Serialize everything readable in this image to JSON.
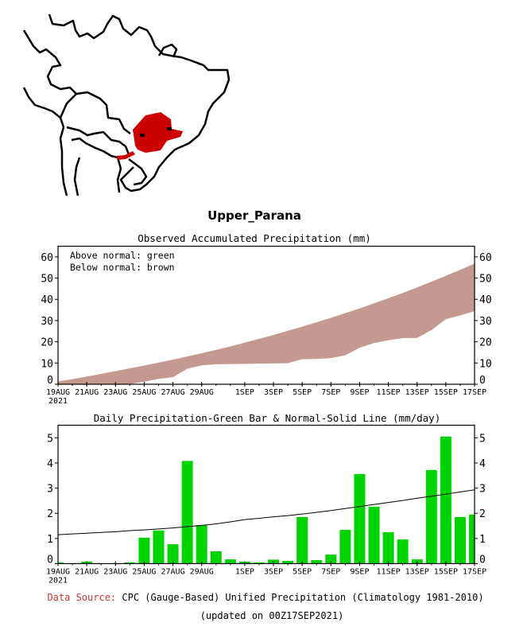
{
  "region": {
    "name": "Upper_Parana",
    "map_highlight_color": "#cc0000"
  },
  "colors": {
    "below_normal": "#c49a90",
    "above_normal": "#00cc00",
    "bar": "#00d400",
    "normal_line": "#000000",
    "data_source_label": "#cc3333"
  },
  "footer": {
    "data_source_label": "Data Source:",
    "data_source_text": "CPC (Gauge-Based) Unified Precipitation (Climatology 1981-2010)",
    "updated": "(updated on 00Z17SEP2021)"
  },
  "chart_data": [
    {
      "type": "area",
      "title": "Observed Accumulated Precipitation (mm)",
      "annotations": [
        "Above normal: green",
        "Below normal: brown"
      ],
      "xlabel": "",
      "ylabel": "",
      "ylim": [
        0,
        65
      ],
      "yticks": [
        0,
        10,
        20,
        30,
        40,
        50,
        60
      ],
      "xtick_labels": [
        "19AUG",
        "21AUG",
        "23AUG",
        "25AUG",
        "27AUG",
        "29AUG",
        "1SEP",
        "3SEP",
        "5SEP",
        "7SEP",
        "9SEP",
        "11SEP",
        "13SEP",
        "15SEP",
        "17SEP"
      ],
      "xtick_day_index": [
        0,
        2,
        4,
        6,
        8,
        10,
        13,
        15,
        17,
        19,
        21,
        23,
        25,
        27,
        29
      ],
      "year_label": "2021",
      "grid": false,
      "x": [
        "19AUG",
        "20AUG",
        "21AUG",
        "22AUG",
        "23AUG",
        "24AUG",
        "25AUG",
        "26AUG",
        "27AUG",
        "28AUG",
        "29AUG",
        "30AUG",
        "31AUG",
        "1SEP",
        "2SEP",
        "3SEP",
        "4SEP",
        "5SEP",
        "6SEP",
        "7SEP",
        "8SEP",
        "9SEP",
        "10SEP",
        "11SEP",
        "12SEP",
        "13SEP",
        "14SEP",
        "15SEP",
        "16SEP",
        "17SEP"
      ],
      "series": [
        {
          "name": "Observed accumulated",
          "values": [
            0.1,
            0.1,
            0.2,
            0.2,
            0.2,
            0.2,
            1.3,
            2.6,
            3.4,
            7.4,
            9.0,
            9.5,
            9.6,
            9.7,
            9.8,
            9.9,
            10.0,
            11.9,
            12.0,
            12.4,
            13.7,
            17.3,
            19.5,
            20.8,
            21.8,
            21.9,
            25.6,
            30.7,
            32.5,
            34.5
          ]
        },
        {
          "name": "Normal accumulated",
          "values": [
            1.2,
            2.3,
            3.5,
            4.8,
            6.1,
            7.4,
            8.7,
            10.1,
            11.5,
            13.0,
            14.5,
            16.1,
            17.7,
            19.5,
            21.3,
            23.1,
            25.1,
            27.0,
            29.1,
            31.2,
            33.4,
            35.6,
            38.0,
            40.4,
            42.9,
            45.5,
            48.2,
            51.0,
            53.8,
            56.7
          ]
        }
      ]
    },
    {
      "type": "bar",
      "title": "Daily Precipitation-Green Bar & Normal-Solid Line (mm/day)",
      "xlabel": "",
      "ylabel": "",
      "ylim": [
        0,
        5.5
      ],
      "yticks": [
        0,
        1,
        2,
        3,
        4,
        5
      ],
      "xtick_labels": [
        "19AUG",
        "21AUG",
        "23AUG",
        "25AUG",
        "27AUG",
        "29AUG",
        "1SEP",
        "3SEP",
        "5SEP",
        "7SEP",
        "9SEP",
        "11SEP",
        "13SEP",
        "15SEP",
        "17SEP"
      ],
      "xtick_day_index": [
        0,
        2,
        4,
        6,
        8,
        10,
        13,
        15,
        17,
        19,
        21,
        23,
        25,
        27,
        29
      ],
      "year_label": "2021",
      "grid": false,
      "categories": [
        "19AUG",
        "20AUG",
        "21AUG",
        "22AUG",
        "23AUG",
        "24AUG",
        "25AUG",
        "26AUG",
        "27AUG",
        "28AUG",
        "29AUG",
        "30AUG",
        "31AUG",
        "1SEP",
        "2SEP",
        "3SEP",
        "4SEP",
        "5SEP",
        "6SEP",
        "7SEP",
        "8SEP",
        "9SEP",
        "10SEP",
        "11SEP",
        "12SEP",
        "13SEP",
        "14SEP",
        "15SEP",
        "16SEP",
        "17SEP"
      ],
      "series": [
        {
          "name": "Daily precipitation",
          "type": "bar",
          "values": [
            0.05,
            0.02,
            0.08,
            0.02,
            0.02,
            0.05,
            1.03,
            1.32,
            0.77,
            4.08,
            1.53,
            0.49,
            0.17,
            0.08,
            0.05,
            0.16,
            0.11,
            1.85,
            0.14,
            0.36,
            1.34,
            3.56,
            2.26,
            1.25,
            0.96,
            0.17,
            3.72,
            5.05,
            1.85,
            1.95
          ]
        },
        {
          "name": "Normal",
          "type": "line",
          "values": [
            1.15,
            1.18,
            1.21,
            1.24,
            1.27,
            1.31,
            1.34,
            1.38,
            1.42,
            1.47,
            1.52,
            1.58,
            1.66,
            1.75,
            1.8,
            1.86,
            1.91,
            1.97,
            2.04,
            2.11,
            2.19,
            2.27,
            2.35,
            2.43,
            2.51,
            2.6,
            2.68,
            2.76,
            2.85,
            2.93
          ]
        }
      ]
    }
  ]
}
